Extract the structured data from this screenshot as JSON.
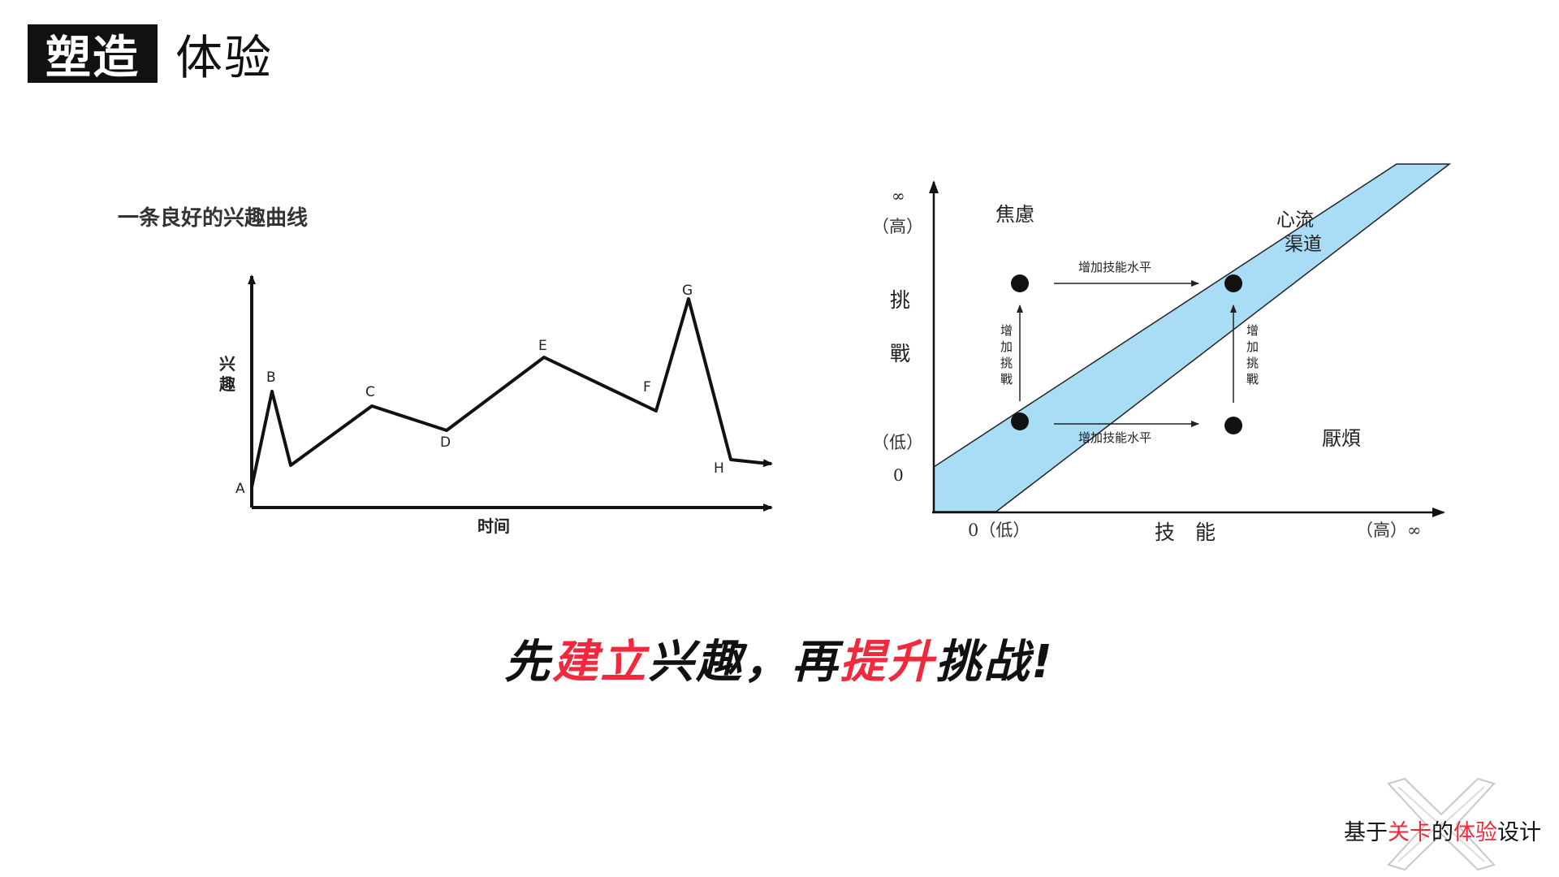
{
  "title": {
    "highlight": "塑造",
    "rest": "体验"
  },
  "interest_chart": {
    "caption": "一条良好的兴趣曲线",
    "y_label_chars": [
      "兴",
      "趣"
    ],
    "x_label": "时间",
    "points": [
      "A",
      "B",
      "C",
      "D",
      "E",
      "F",
      "G",
      "H"
    ]
  },
  "flow_chart": {
    "y_infinity": "∞",
    "y_high": "（高）",
    "y_label_chars": [
      "挑",
      "戰"
    ],
    "y_low": "（低）",
    "y_zero": "0",
    "x_low": "0（低）",
    "x_label": "技　能",
    "x_high": "（高）∞",
    "region_anxiety": "焦慮",
    "region_flow_line1": "心流",
    "region_flow_line2": "渠道",
    "region_boredom": "厭煩",
    "arrow_skill_top": "增加技能水平",
    "arrow_skill_bottom": "增加技能水平",
    "arrow_challenge_chars": [
      "增",
      "加",
      "挑",
      "戰"
    ],
    "band_color": "#a9dcf5"
  },
  "slogan": {
    "p1": "先",
    "p2": "建立",
    "p3": "兴趣，再",
    "p4": "提升",
    "p5": "挑战!"
  },
  "brand": {
    "a": "基于",
    "b": "关卡",
    "c": "的",
    "d": "体验",
    "e": "设计"
  },
  "colors": {
    "accent_red": "#f2283c",
    "title_bg": "#111111"
  },
  "logo_icon": "crossed-x-logo-icon"
}
